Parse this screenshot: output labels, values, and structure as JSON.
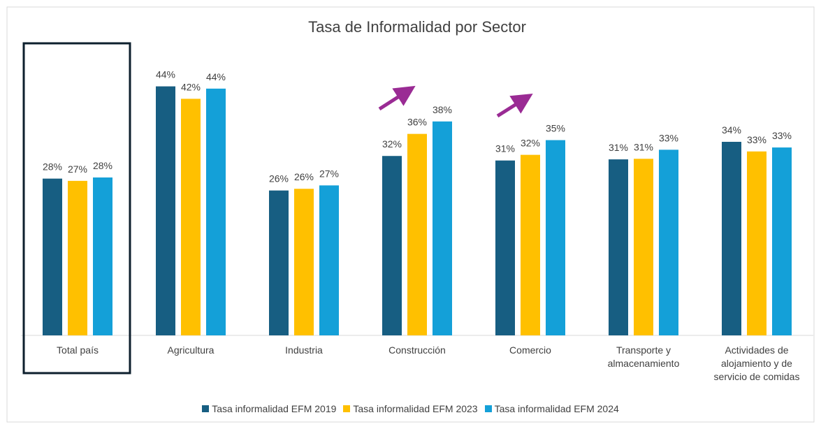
{
  "chart_data": {
    "type": "bar",
    "title": "Tasa de Informalidad por Sector",
    "categories": [
      "Total país",
      "Agricultura",
      "Industria",
      "Construcción",
      "Comercio",
      "Transporte y almacenamiento",
      "Actividades de alojamiento y de servicio de comidas"
    ],
    "series": [
      {
        "name": "Tasa informalidad EFM 2019",
        "color": "#175e82",
        "values": [
          27.7,
          44.0,
          25.6,
          31.7,
          30.9,
          31.1,
          34.2
        ],
        "value_labels": [
          "28%",
          "44%",
          "26%",
          "32%",
          "31%",
          "31%",
          "34%"
        ]
      },
      {
        "name": "Tasa informalidad EFM 2023",
        "color": "#ffc000",
        "values": [
          27.3,
          41.8,
          25.9,
          35.6,
          31.9,
          31.2,
          32.5
        ],
        "value_labels": [
          "27%",
          "42%",
          "26%",
          "36%",
          "32%",
          "31%",
          "33%"
        ]
      },
      {
        "name": "Tasa informalidad EFM 2024",
        "color": "#14a0d8",
        "values": [
          27.9,
          43.6,
          26.5,
          37.8,
          34.5,
          32.8,
          33.2
        ],
        "value_labels": [
          "28%",
          "44%",
          "27%",
          "38%",
          "35%",
          "33%",
          "33%"
        ]
      }
    ],
    "ylim": [
      0,
      50
    ],
    "legend": "bottom"
  }
}
